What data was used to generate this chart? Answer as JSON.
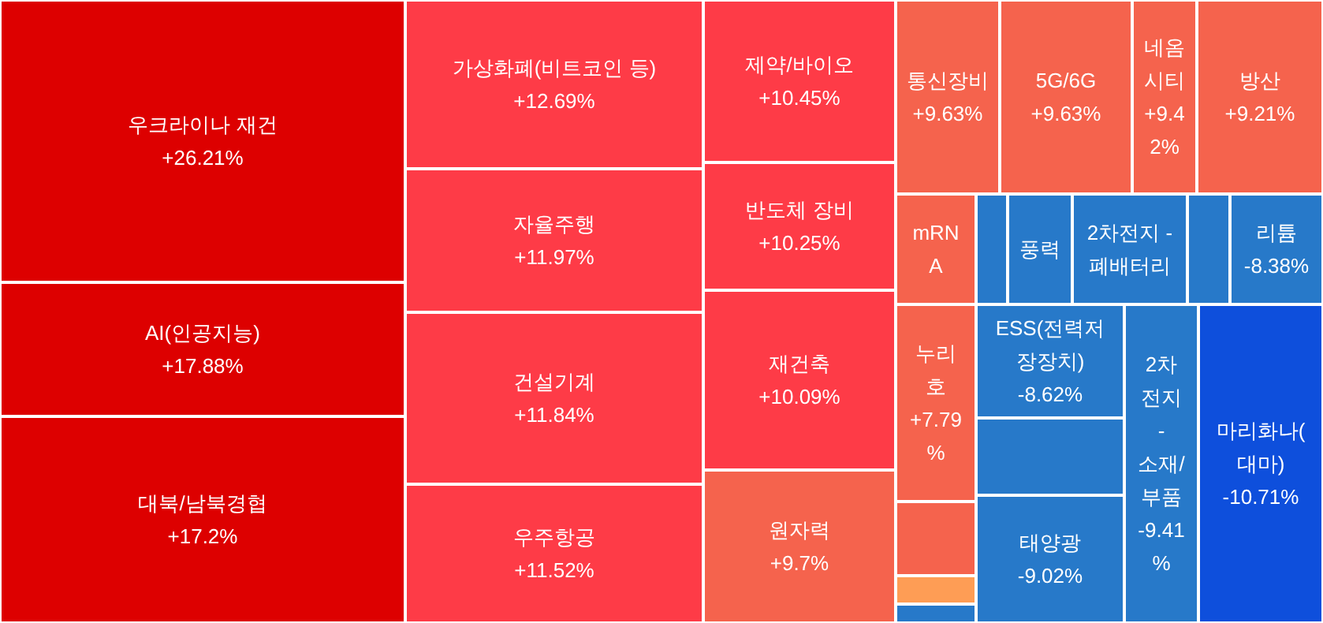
{
  "chart_data": {
    "type": "other",
    "categories": [
      "우크라이나 재건",
      "AI(인공지능)",
      "대북/남북경협",
      "가상화폐(비트코인 등)",
      "자율주행",
      "건설기계",
      "우주항공",
      "제약/바이오",
      "반도체 장비",
      "재건축",
      "원자력",
      "통신장비",
      "5G/6G",
      "네옴시티",
      "방산",
      "mRNA",
      null,
      "풍력",
      "2차전지 - 폐배터리",
      null,
      "리튬",
      "누리호",
      null,
      null,
      null,
      "ESS(전력저장장치)",
      null,
      "태양광",
      "2차전지 - 소재/부품",
      "마리화나(대마)"
    ],
    "values": [
      26.21,
      17.88,
      17.2,
      12.69,
      11.97,
      11.84,
      11.52,
      10.45,
      10.25,
      10.09,
      9.7,
      9.63,
      9.63,
      9.42,
      9.21,
      null,
      null,
      null,
      null,
      null,
      -8.38,
      7.79,
      null,
      null,
      null,
      -8.62,
      null,
      -9.02,
      -9.41,
      -10.71
    ],
    "value_labels": [
      "+26.21%",
      "+17.88%",
      "+17.2%",
      "+12.69%",
      "+11.97%",
      "+11.84%",
      "+11.52%",
      "+10.45%",
      "+10.25%",
      "+10.09%",
      "+9.7%",
      "+9.63%",
      "+9.63%",
      "+9.42%",
      "+9.21%",
      null,
      null,
      null,
      null,
      null,
      "-8.38%",
      "+7.79%",
      null,
      null,
      null,
      "-8.62%",
      null,
      "-9.02%",
      "-9.41%",
      "-10.71%"
    ],
    "colors": [
      "#dd0000",
      "#dd0000",
      "#dd0000",
      "#fe3b47",
      "#fe3b47",
      "#fe3b47",
      "#fe3b47",
      "#fe3b47",
      "#fe3b47",
      "#fe3b47",
      "#f5634d",
      "#f5634d",
      "#f5634d",
      "#f5634d",
      "#f5634d",
      "#f5634d",
      "#2779c9",
      "#2779c9",
      "#2779c9",
      "#2779c9",
      "#2779c9",
      "#f5634d",
      "#f5634d",
      "#fe9d55",
      "#2779c9",
      "#2779c9",
      "#2779c9",
      "#2779c9",
      "#2779c9",
      "#0e4fdc"
    ]
  }
}
